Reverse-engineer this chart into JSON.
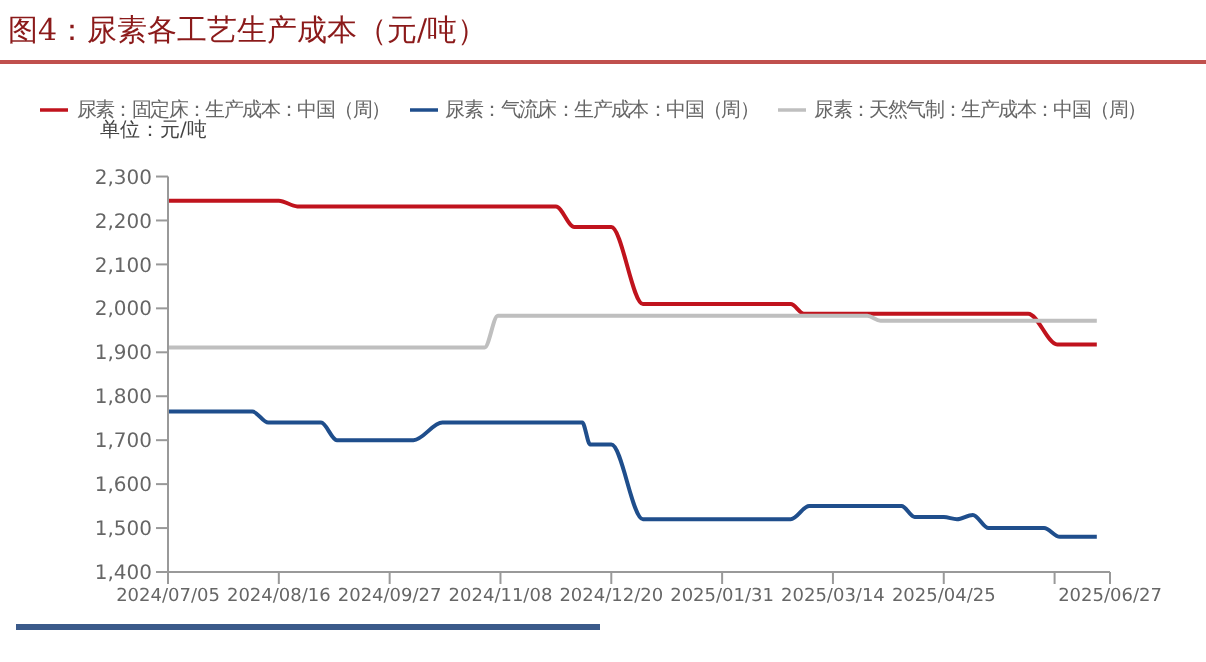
{
  "chart_data": {
    "type": "line",
    "title": "图4：尿素各工艺生产成本（元/吨）",
    "ylabel": "单位：元/吨",
    "xlim": [
      "2024-07-05",
      "2025-06-27"
    ],
    "xticks": [
      {
        "value": "2024-07-05",
        "label": "2024/07/05"
      },
      {
        "value": "2024-08-16",
        "label": "2024/08/16"
      },
      {
        "value": "2024-09-27",
        "label": "2024/09/27"
      },
      {
        "value": "2024-11-08",
        "label": "2024/11/08"
      },
      {
        "value": "2024-12-20",
        "label": "2024/12/20"
      },
      {
        "value": "2025-01-31",
        "label": "2025/01/31"
      },
      {
        "value": "2025-03-14",
        "label": "2025/03/14"
      },
      {
        "value": "2025-04-25",
        "label": "2025/04/25"
      },
      {
        "value": "2025-06-06",
        "label": null
      },
      {
        "value": "2025-06-27",
        "label": "2025/06/27"
      }
    ],
    "ylim": [
      1400,
      2300
    ],
    "yticks": [
      {
        "value": 1400,
        "label": "1,400"
      },
      {
        "value": 1500,
        "label": "1,500"
      },
      {
        "value": 1600,
        "label": "1,600"
      },
      {
        "value": 1700,
        "label": "1,700"
      },
      {
        "value": 1800,
        "label": "1,800"
      },
      {
        "value": 1900,
        "label": "1,900"
      },
      {
        "value": 2000,
        "label": "2,000"
      },
      {
        "value": 2100,
        "label": "2,100"
      },
      {
        "value": 2200,
        "label": "2,200"
      },
      {
        "value": 2300,
        "label": "2,300"
      }
    ],
    "grid": false,
    "legend": "top",
    "marker": "none",
    "line_style": "solid",
    "series": [
      {
        "name": "尿素：固定床：生产成本：中国（周）",
        "color": "#c0131d",
        "x": [
          "2024-07-05",
          "2024-08-16",
          "2024-08-23",
          "2024-11-29",
          "2024-12-06",
          "2024-12-20",
          "2025-01-01",
          "2025-02-26",
          "2025-03-03",
          "2025-05-27",
          "2025-06-07",
          "2025-06-22"
        ],
        "values": [
          2245,
          2245,
          2232,
          2232,
          2185,
          2185,
          2010,
          2010,
          1988,
          1988,
          1918,
          1918
        ]
      },
      {
        "name": "尿素：气流床：生产成本：中国（周）",
        "color": "#1f4e8c",
        "x": [
          "2024-07-05",
          "2024-08-06",
          "2024-08-12",
          "2024-09-01",
          "2024-09-07",
          "2024-10-06",
          "2024-10-17",
          "2024-12-09",
          "2024-12-12",
          "2024-12-20",
          "2025-01-01",
          "2025-02-26",
          "2025-03-05",
          "2025-04-09",
          "2025-04-14",
          "2025-04-25",
          "2025-04-30",
          "2025-05-06",
          "2025-05-12",
          "2025-06-02",
          "2025-06-08",
          "2025-06-22"
        ],
        "values": [
          1765,
          1765,
          1740,
          1740,
          1700,
          1700,
          1740,
          1740,
          1690,
          1690,
          1520,
          1520,
          1550,
          1550,
          1525,
          1525,
          1520,
          1530,
          1500,
          1500,
          1480,
          1480
        ]
      },
      {
        "name": "尿素：天然气制：生产成本：中国（周）",
        "color": "#bfbfbf",
        "x": [
          "2024-07-05",
          "2024-11-02",
          "2024-11-07",
          "2025-03-27",
          "2025-04-01",
          "2025-06-22"
        ],
        "values": [
          1911,
          1911,
          1983,
          1983,
          1972,
          1972
        ]
      }
    ]
  }
}
